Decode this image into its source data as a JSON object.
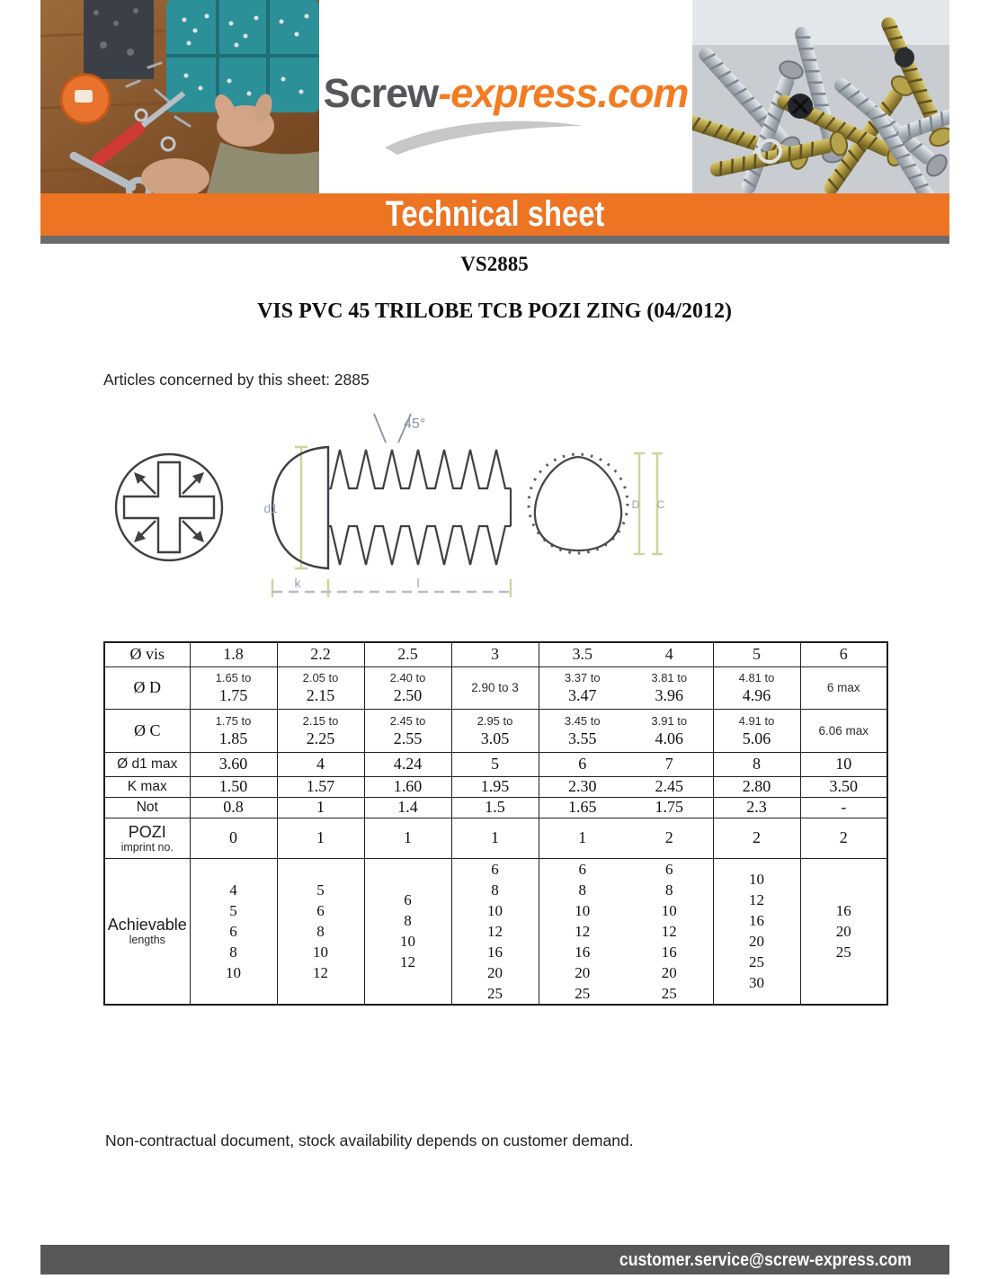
{
  "brand": {
    "logo_part1": "Screw",
    "logo_part2": "-express.com"
  },
  "banner": {
    "title": "Technical sheet"
  },
  "document": {
    "reference": "VS2885",
    "title": "VIS PVC 45 TRILOBE TCB POZI ZING (04/2012)",
    "articles_note": "Articles concerned by this sheet: 2885",
    "disclaimer": "Non-contractual document, stock availability depends on customer demand.",
    "contact_email": "customer.service@screw-express.com"
  },
  "colors": {
    "accent_orange": "#ED7423",
    "logo_orange": "#F47B20",
    "logo_gray": "#54565A",
    "strip_gray": "#6B6C6E",
    "bottom_bar_gray": "#57585A"
  },
  "diagram": {
    "views": [
      "pozi-recess-front-view",
      "screw-side-view",
      "trilobe-cross-section"
    ],
    "labels": {
      "head_diameter": "d1",
      "head_height": "k",
      "length": "l",
      "tip_angle": "45°",
      "dim_d": "D",
      "dim_c": "C"
    }
  },
  "table": {
    "header": {
      "label": "Ø vis",
      "columns": [
        "1.8",
        "2.2",
        "2.5",
        "3",
        "3.5",
        "4",
        "5",
        "6"
      ]
    },
    "merged_columns": [
      "3.5",
      "4"
    ],
    "rows": [
      {
        "label": "Ø D",
        "label_font": "serif",
        "type": "range",
        "cells": [
          [
            "1.65 to",
            "1.75"
          ],
          [
            "2.05 to",
            "2.15"
          ],
          [
            "2.40 to",
            "2.50"
          ],
          [
            "2.90 to 3"
          ],
          [
            "3.37 to",
            "3.47"
          ],
          [
            "3.81 to",
            "3.96"
          ],
          [
            "4.81 to",
            "4.96"
          ],
          [
            "6 max"
          ]
        ]
      },
      {
        "label": "Ø C",
        "label_font": "serif",
        "type": "range",
        "cells": [
          [
            "1.75 to",
            "1.85"
          ],
          [
            "2.15 to",
            "2.25"
          ],
          [
            "2.45 to",
            "2.55"
          ],
          [
            "2.95 to",
            "3.05"
          ],
          [
            "3.45 to",
            "3.55"
          ],
          [
            "3.91 to",
            "4.06"
          ],
          [
            "4.91 to",
            "5.06"
          ],
          [
            "6.06 max"
          ]
        ]
      },
      {
        "label": "Ø d1 max",
        "label_font": "sans",
        "type": "single",
        "cells": [
          "3.60",
          "4",
          "4.24",
          "5",
          "6",
          "7",
          "8",
          "10"
        ]
      },
      {
        "label": "K max",
        "label_font": "sans",
        "type": "single",
        "cells": [
          "1.50",
          "1.57",
          "1.60",
          "1.95",
          "2.30",
          "2.45",
          "2.80",
          "3.50"
        ]
      },
      {
        "label": "Not",
        "label_font": "sans",
        "type": "single",
        "cells": [
          "0.8",
          "1",
          "1.4",
          "1.5",
          "1.65",
          "1.75",
          "2.3",
          "-"
        ]
      },
      {
        "label": "POZI",
        "sublabel": "imprint no.",
        "label_font": "sans",
        "type": "single",
        "cells": [
          "0",
          "1",
          "1",
          "1",
          "1",
          "2",
          "2",
          "2"
        ]
      },
      {
        "label": "Achievable",
        "sublabel": "lengths",
        "label_font": "sans",
        "type": "list",
        "cells": [
          [
            "4",
            "5",
            "6",
            "8",
            "10"
          ],
          [
            "5",
            "6",
            "8",
            "10",
            "12"
          ],
          [
            "6",
            "8",
            "10",
            "12"
          ],
          [
            "6",
            "8",
            "10",
            "12",
            "16",
            "20",
            "25"
          ],
          [
            "6",
            "8",
            "10",
            "12",
            "16",
            "20",
            "25"
          ],
          [
            "6",
            "8",
            "10",
            "12",
            "16",
            "20",
            "25"
          ],
          [
            "10",
            "12",
            "16",
            "20",
            "25",
            "30"
          ],
          [
            "16",
            "20",
            "25"
          ]
        ]
      }
    ]
  }
}
